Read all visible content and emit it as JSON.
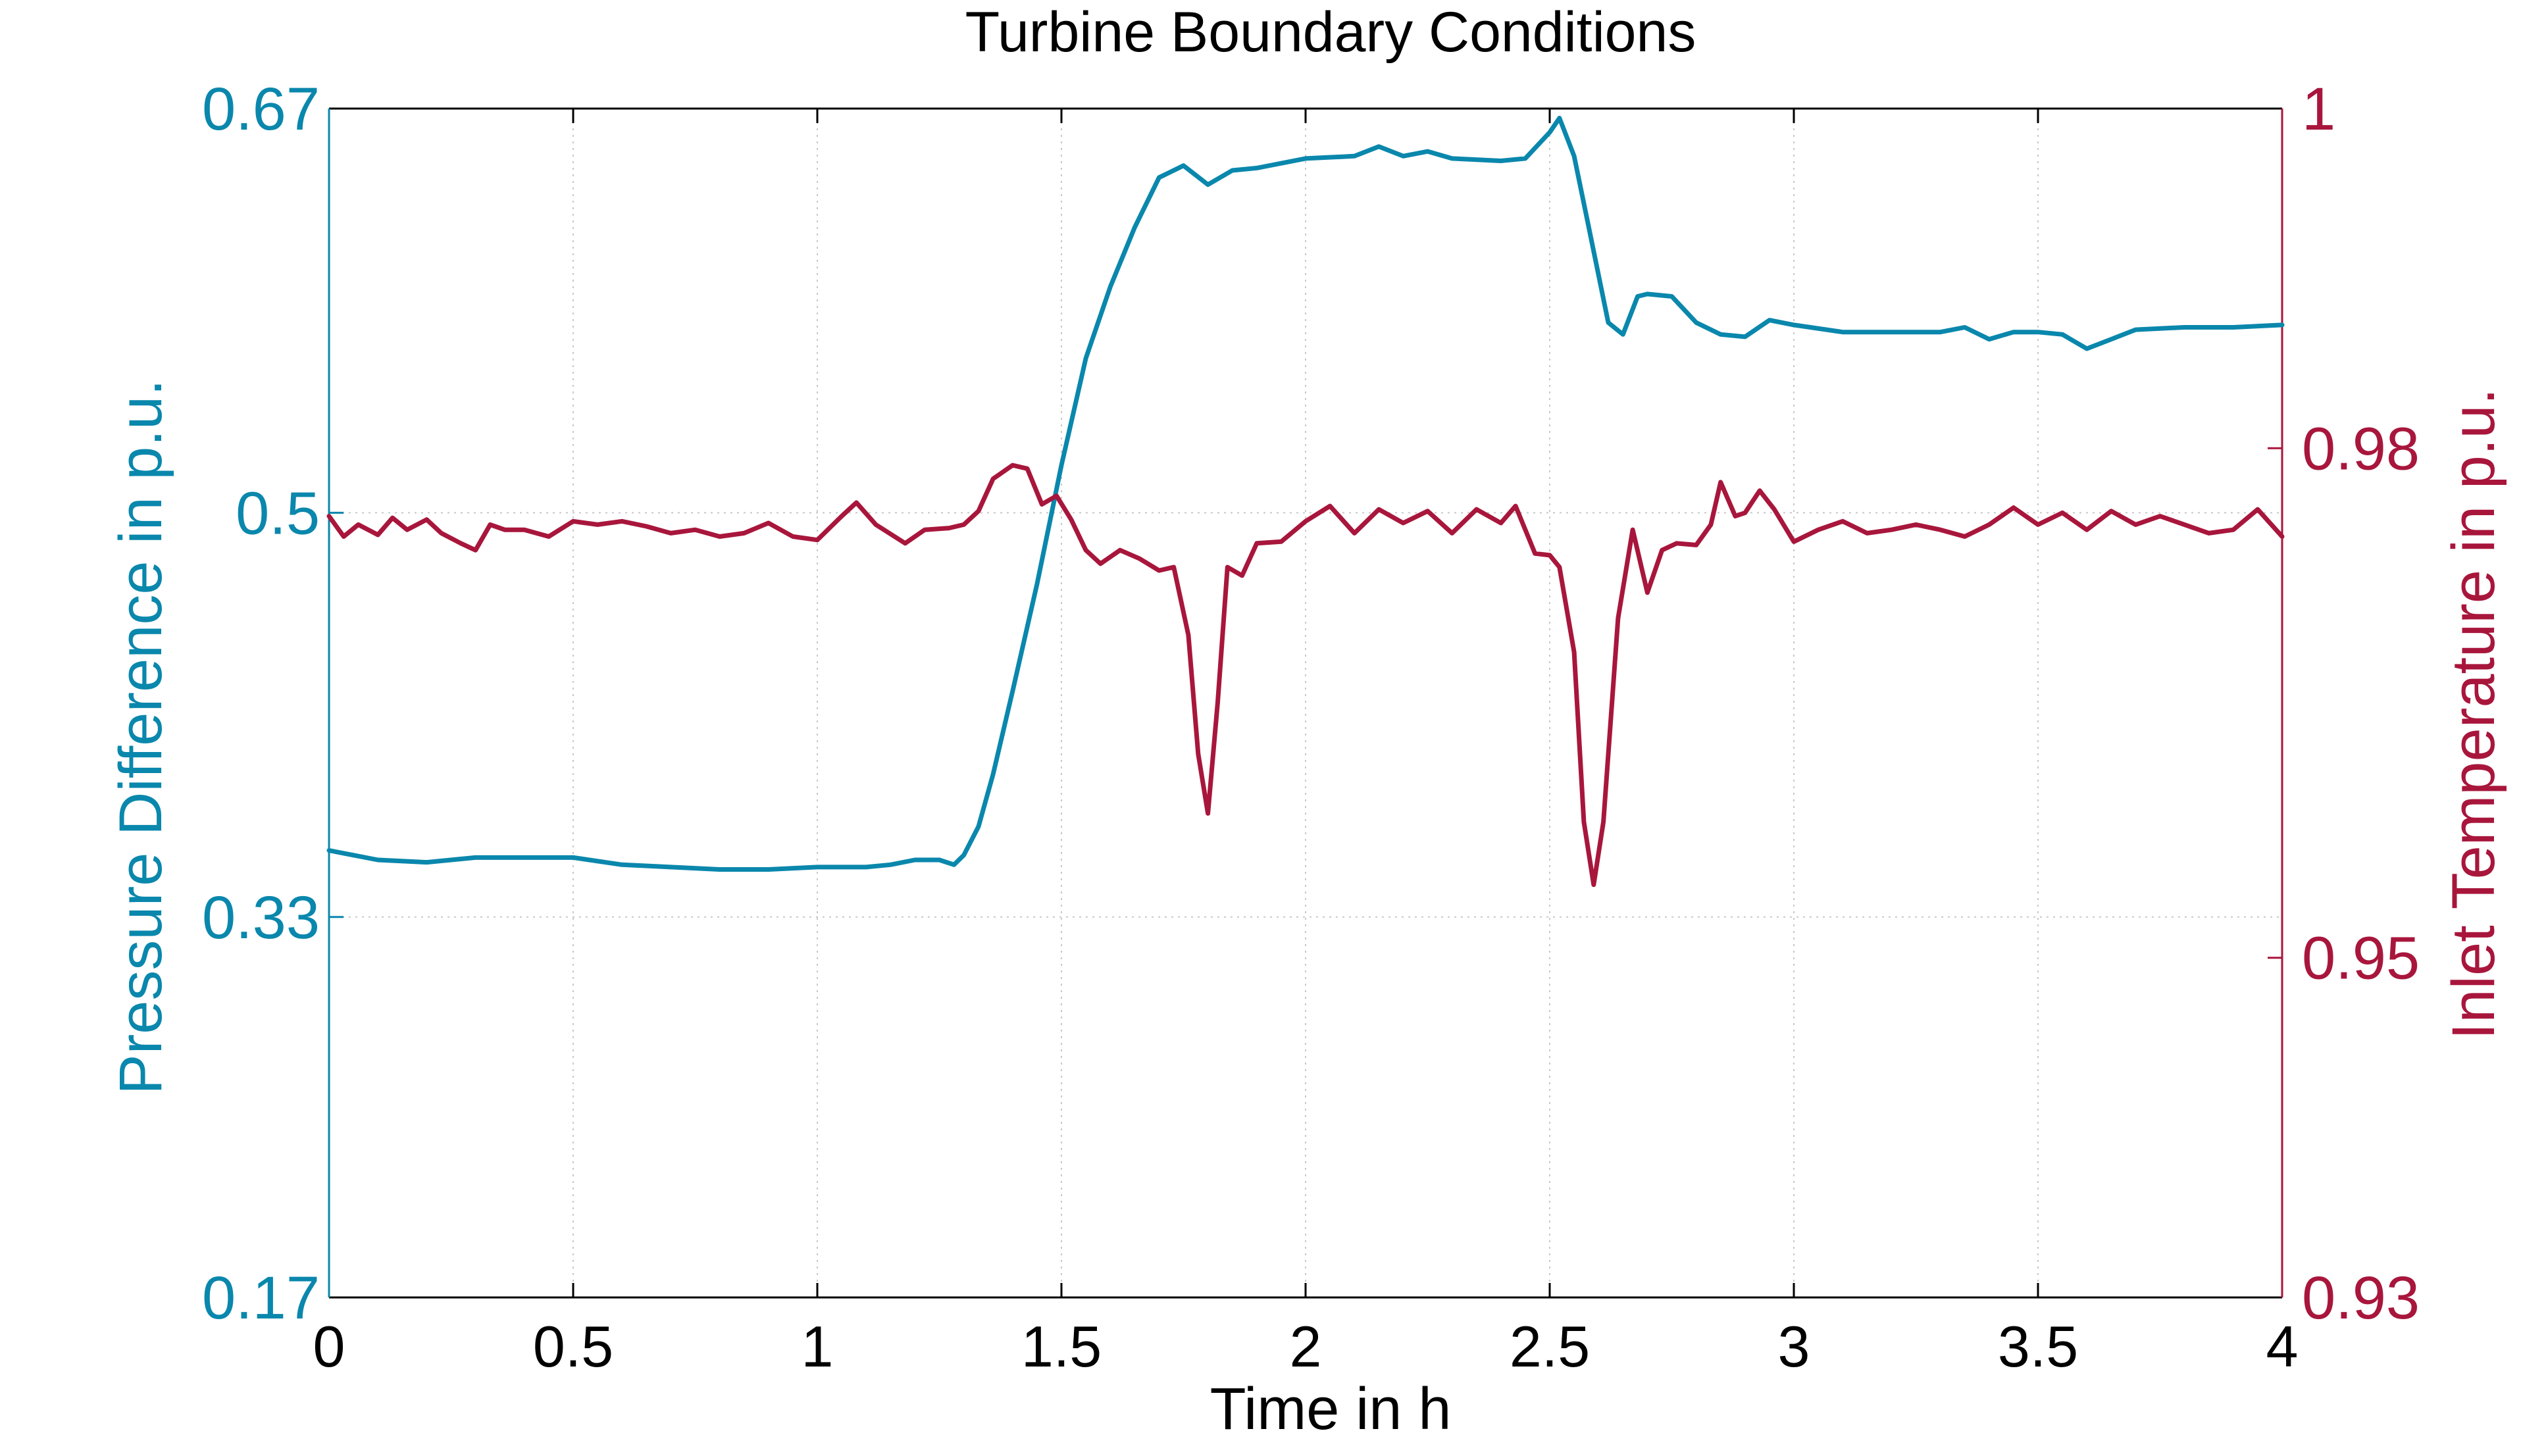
{
  "colors": {
    "left_series": "#0A87AC",
    "right_series": "#A8163C",
    "left_axis": "#0A87AC",
    "right_axis": "#A8163C",
    "grid": "#c8c8c8"
  },
  "chart_data": {
    "type": "line",
    "title": "Turbine Boundary Conditions",
    "xlabel": "Time in h",
    "ylabel_left": "Pressure Difference in p.u.",
    "ylabel_right": "Inlet Temperature in p.u.",
    "xlim": [
      0,
      4
    ],
    "ylim_left": [
      0.17,
      0.67
    ],
    "ylim_right": [
      0.93,
      1.0
    ],
    "x_ticks": [
      "0",
      "0.5",
      "1",
      "1.5",
      "2",
      "2.5",
      "3",
      "3.5",
      "4"
    ],
    "y_left_ticks": [
      "0.17",
      "0.33",
      "0.5",
      "0.67"
    ],
    "y_right_ticks": [
      "0.93",
      "0.95",
      "0.98",
      "1"
    ],
    "grid": true,
    "series": [
      {
        "axis": "left",
        "points": [
          [
            0.0,
            0.358
          ],
          [
            0.05,
            0.356
          ],
          [
            0.1,
            0.354
          ],
          [
            0.2,
            0.353
          ],
          [
            0.3,
            0.355
          ],
          [
            0.4,
            0.355
          ],
          [
            0.5,
            0.355
          ],
          [
            0.6,
            0.352
          ],
          [
            0.7,
            0.351
          ],
          [
            0.8,
            0.35
          ],
          [
            0.9,
            0.35
          ],
          [
            1.0,
            0.351
          ],
          [
            1.1,
            0.351
          ],
          [
            1.15,
            0.352
          ],
          [
            1.2,
            0.354
          ],
          [
            1.25,
            0.354
          ],
          [
            1.28,
            0.352
          ],
          [
            1.3,
            0.356
          ],
          [
            1.33,
            0.368
          ],
          [
            1.36,
            0.39
          ],
          [
            1.4,
            0.425
          ],
          [
            1.45,
            0.47
          ],
          [
            1.5,
            0.52
          ],
          [
            1.55,
            0.565
          ],
          [
            1.6,
            0.595
          ],
          [
            1.65,
            0.62
          ],
          [
            1.7,
            0.641
          ],
          [
            1.75,
            0.646
          ],
          [
            1.8,
            0.638
          ],
          [
            1.85,
            0.644
          ],
          [
            1.9,
            0.645
          ],
          [
            2.0,
            0.649
          ],
          [
            2.1,
            0.65
          ],
          [
            2.15,
            0.654
          ],
          [
            2.2,
            0.65
          ],
          [
            2.25,
            0.652
          ],
          [
            2.3,
            0.649
          ],
          [
            2.4,
            0.648
          ],
          [
            2.45,
            0.649
          ],
          [
            2.5,
            0.66
          ],
          [
            2.52,
            0.666
          ],
          [
            2.55,
            0.65
          ],
          [
            2.58,
            0.62
          ],
          [
            2.62,
            0.58
          ],
          [
            2.65,
            0.575
          ],
          [
            2.68,
            0.591
          ],
          [
            2.7,
            0.592
          ],
          [
            2.75,
            0.591
          ],
          [
            2.8,
            0.58
          ],
          [
            2.85,
            0.575
          ],
          [
            2.9,
            0.574
          ],
          [
            2.95,
            0.581
          ],
          [
            3.0,
            0.579
          ],
          [
            3.1,
            0.576
          ],
          [
            3.2,
            0.576
          ],
          [
            3.3,
            0.576
          ],
          [
            3.35,
            0.578
          ],
          [
            3.4,
            0.573
          ],
          [
            3.45,
            0.576
          ],
          [
            3.5,
            0.576
          ],
          [
            3.55,
            0.575
          ],
          [
            3.6,
            0.569
          ],
          [
            3.65,
            0.573
          ],
          [
            3.7,
            0.577
          ],
          [
            3.8,
            0.578
          ],
          [
            3.9,
            0.578
          ],
          [
            4.0,
            0.579
          ]
        ]
      },
      {
        "axis": "right",
        "points": [
          [
            0.0,
            0.976
          ],
          [
            0.03,
            0.9748
          ],
          [
            0.06,
            0.9755
          ],
          [
            0.1,
            0.9749
          ],
          [
            0.13,
            0.9759
          ],
          [
            0.16,
            0.9752
          ],
          [
            0.2,
            0.9758
          ],
          [
            0.23,
            0.975
          ],
          [
            0.27,
            0.9744
          ],
          [
            0.3,
            0.974
          ],
          [
            0.33,
            0.9755
          ],
          [
            0.36,
            0.9752
          ],
          [
            0.4,
            0.9752
          ],
          [
            0.45,
            0.9748
          ],
          [
            0.5,
            0.9757
          ],
          [
            0.55,
            0.9755
          ],
          [
            0.6,
            0.9757
          ],
          [
            0.65,
            0.9754
          ],
          [
            0.7,
            0.975
          ],
          [
            0.75,
            0.9752
          ],
          [
            0.8,
            0.9748
          ],
          [
            0.85,
            0.975
          ],
          [
            0.9,
            0.9756
          ],
          [
            0.95,
            0.9748
          ],
          [
            1.0,
            0.9746
          ],
          [
            1.05,
            0.976
          ],
          [
            1.08,
            0.9768
          ],
          [
            1.12,
            0.9755
          ],
          [
            1.18,
            0.9744
          ],
          [
            1.22,
            0.9752
          ],
          [
            1.27,
            0.9753
          ],
          [
            1.3,
            0.9755
          ],
          [
            1.33,
            0.9763
          ],
          [
            1.36,
            0.9782
          ],
          [
            1.4,
            0.979
          ],
          [
            1.43,
            0.9788
          ],
          [
            1.46,
            0.9767
          ],
          [
            1.49,
            0.9772
          ],
          [
            1.52,
            0.9758
          ],
          [
            1.55,
            0.974
          ],
          [
            1.58,
            0.9732
          ],
          [
            1.62,
            0.974
          ],
          [
            1.66,
            0.9735
          ],
          [
            1.7,
            0.9728
          ],
          [
            1.73,
            0.973
          ],
          [
            1.76,
            0.969
          ],
          [
            1.78,
            0.962
          ],
          [
            1.8,
            0.9585
          ],
          [
            1.82,
            0.965
          ],
          [
            1.84,
            0.973
          ],
          [
            1.87,
            0.9725
          ],
          [
            1.9,
            0.9744
          ],
          [
            1.95,
            0.9745
          ],
          [
            2.0,
            0.9757
          ],
          [
            2.05,
            0.9766
          ],
          [
            2.1,
            0.975
          ],
          [
            2.15,
            0.9764
          ],
          [
            2.2,
            0.9756
          ],
          [
            2.25,
            0.9763
          ],
          [
            2.3,
            0.975
          ],
          [
            2.35,
            0.9764
          ],
          [
            2.4,
            0.9756
          ],
          [
            2.43,
            0.9766
          ],
          [
            2.47,
            0.9738
          ],
          [
            2.5,
            0.9737
          ],
          [
            2.52,
            0.973
          ],
          [
            2.55,
            0.968
          ],
          [
            2.57,
            0.958
          ],
          [
            2.59,
            0.9543
          ],
          [
            2.61,
            0.958
          ],
          [
            2.64,
            0.97
          ],
          [
            2.67,
            0.9752
          ],
          [
            2.7,
            0.9715
          ],
          [
            2.73,
            0.974
          ],
          [
            2.76,
            0.9744
          ],
          [
            2.8,
            0.9743
          ],
          [
            2.83,
            0.9755
          ],
          [
            2.85,
            0.978
          ],
          [
            2.88,
            0.976
          ],
          [
            2.9,
            0.9762
          ],
          [
            2.93,
            0.9775
          ],
          [
            2.96,
            0.9764
          ],
          [
            3.0,
            0.9745
          ],
          [
            3.05,
            0.9752
          ],
          [
            3.1,
            0.9757
          ],
          [
            3.15,
            0.975
          ],
          [
            3.2,
            0.9752
          ],
          [
            3.25,
            0.9755
          ],
          [
            3.3,
            0.9752
          ],
          [
            3.35,
            0.9748
          ],
          [
            3.4,
            0.9755
          ],
          [
            3.45,
            0.9765
          ],
          [
            3.5,
            0.9755
          ],
          [
            3.55,
            0.9762
          ],
          [
            3.6,
            0.9752
          ],
          [
            3.65,
            0.9763
          ],
          [
            3.7,
            0.9755
          ],
          [
            3.75,
            0.976
          ],
          [
            3.8,
            0.9755
          ],
          [
            3.85,
            0.975
          ],
          [
            3.9,
            0.9752
          ],
          [
            3.95,
            0.9764
          ],
          [
            4.0,
            0.9748
          ]
        ]
      }
    ]
  }
}
